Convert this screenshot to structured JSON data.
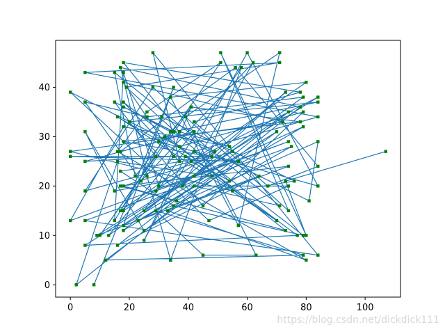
{
  "chart_data": {
    "type": "line",
    "title": "",
    "xlabel": "",
    "ylabel": "",
    "xlim": [
      -5,
      112
    ],
    "ylim": [
      -2.5,
      49.5
    ],
    "xticks": [
      0,
      20,
      40,
      60,
      80,
      100
    ],
    "yticks": [
      0,
      10,
      20,
      30,
      40
    ],
    "grid": false,
    "line_color": "#1f77b4",
    "marker_color": "#008000",
    "series": [
      {
        "points": [
          [
            107,
            27
          ],
          [
            73,
            21
          ],
          [
            80,
            10
          ],
          [
            51,
            47
          ],
          [
            74,
            15
          ],
          [
            28,
            40
          ],
          [
            5,
            19
          ],
          [
            41,
            25
          ],
          [
            84,
            38
          ],
          [
            9,
            10
          ],
          [
            64,
            22
          ],
          [
            16,
            8
          ],
          [
            74,
            35
          ],
          [
            25,
            15
          ],
          [
            58,
            44
          ],
          [
            34,
            5
          ],
          [
            26,
            22
          ],
          [
            17,
            44
          ],
          [
            78,
            36
          ],
          [
            2,
            0
          ],
          [
            16,
            25
          ],
          [
            48,
            22
          ],
          [
            18,
            11
          ],
          [
            73,
            39
          ],
          [
            38,
            20
          ],
          [
            62,
            45
          ],
          [
            24,
            21
          ],
          [
            5,
            37
          ],
          [
            26,
            34
          ],
          [
            79,
            38
          ],
          [
            13,
            10
          ],
          [
            42,
            31
          ],
          [
            5,
            25
          ],
          [
            35,
            26
          ],
          [
            18,
            41
          ],
          [
            72,
            33
          ],
          [
            0,
            27
          ],
          [
            55,
            19
          ],
          [
            76,
            21
          ],
          [
            31,
            34
          ],
          [
            8,
            0
          ],
          [
            35,
            40
          ],
          [
            18,
            12
          ],
          [
            70,
            31
          ],
          [
            12,
            5
          ],
          [
            79,
            6
          ],
          [
            29,
            15
          ],
          [
            45,
            6
          ],
          [
            63,
            6
          ],
          [
            39,
            34
          ],
          [
            71,
            47
          ],
          [
            57,
            12
          ],
          [
            34,
            38
          ],
          [
            80,
            41
          ],
          [
            17,
            15
          ],
          [
            41,
            36
          ],
          [
            29,
            19
          ],
          [
            74,
            29
          ],
          [
            0,
            13
          ],
          [
            18,
            32
          ],
          [
            54,
            28
          ],
          [
            37,
            31
          ],
          [
            18,
            45
          ],
          [
            78,
            39
          ],
          [
            42,
            33
          ],
          [
            67,
            20
          ],
          [
            84,
            24
          ],
          [
            56,
            44
          ],
          [
            17,
            27
          ],
          [
            30,
            29
          ],
          [
            84,
            20
          ],
          [
            60,
            47
          ],
          [
            25,
            9
          ],
          [
            39,
            26
          ],
          [
            70,
            13
          ],
          [
            16,
            34
          ],
          [
            54,
            21
          ],
          [
            19,
            40
          ],
          [
            71,
            45
          ],
          [
            5,
            43
          ],
          [
            84,
            34
          ],
          [
            42,
            27
          ],
          [
            79,
            10
          ],
          [
            35,
            16
          ],
          [
            17,
            23
          ],
          [
            48,
            26
          ],
          [
            0,
            26
          ],
          [
            57,
            25
          ],
          [
            18,
            29
          ],
          [
            78,
            33
          ],
          [
            41,
            36
          ],
          [
            22,
            22
          ],
          [
            15,
            43
          ],
          [
            71,
            16
          ],
          [
            42,
            20
          ],
          [
            23,
            13
          ],
          [
            84,
            29
          ],
          [
            81,
            17
          ],
          [
            34,
            31
          ],
          [
            15,
            37
          ],
          [
            29,
            26
          ],
          [
            10,
            10
          ],
          [
            51,
            45
          ],
          [
            26,
            35
          ],
          [
            16,
            27
          ],
          [
            80,
            5
          ],
          [
            33,
            15
          ],
          [
            74,
            24
          ],
          [
            17,
            20
          ],
          [
            73,
            11
          ],
          [
            18,
            37
          ],
          [
            37,
            25
          ],
          [
            28,
            47
          ],
          [
            84,
            6
          ],
          [
            5,
            13
          ],
          [
            75,
            28
          ],
          [
            25,
            11
          ],
          [
            5,
            31
          ],
          [
            15,
            19
          ],
          [
            42,
            22
          ],
          [
            79,
            32
          ],
          [
            36,
            17
          ],
          [
            18,
            20
          ],
          [
            55,
            27
          ],
          [
            5,
            8
          ],
          [
            77,
            10
          ],
          [
            32,
            30
          ],
          [
            15,
            13
          ],
          [
            18,
            43
          ],
          [
            30,
            20
          ],
          [
            74,
            20
          ],
          [
            47,
            13
          ],
          [
            0,
            39
          ],
          [
            37,
            28
          ],
          [
            79,
            35
          ],
          [
            45,
            16
          ],
          [
            20,
            33
          ],
          [
            84,
            37
          ],
          [
            35,
            31
          ],
          [
            18,
            36
          ],
          [
            49,
            27
          ],
          [
            18,
            15
          ]
        ]
      }
    ]
  },
  "watermark": "https://blog.csdn.net/dickdick111"
}
